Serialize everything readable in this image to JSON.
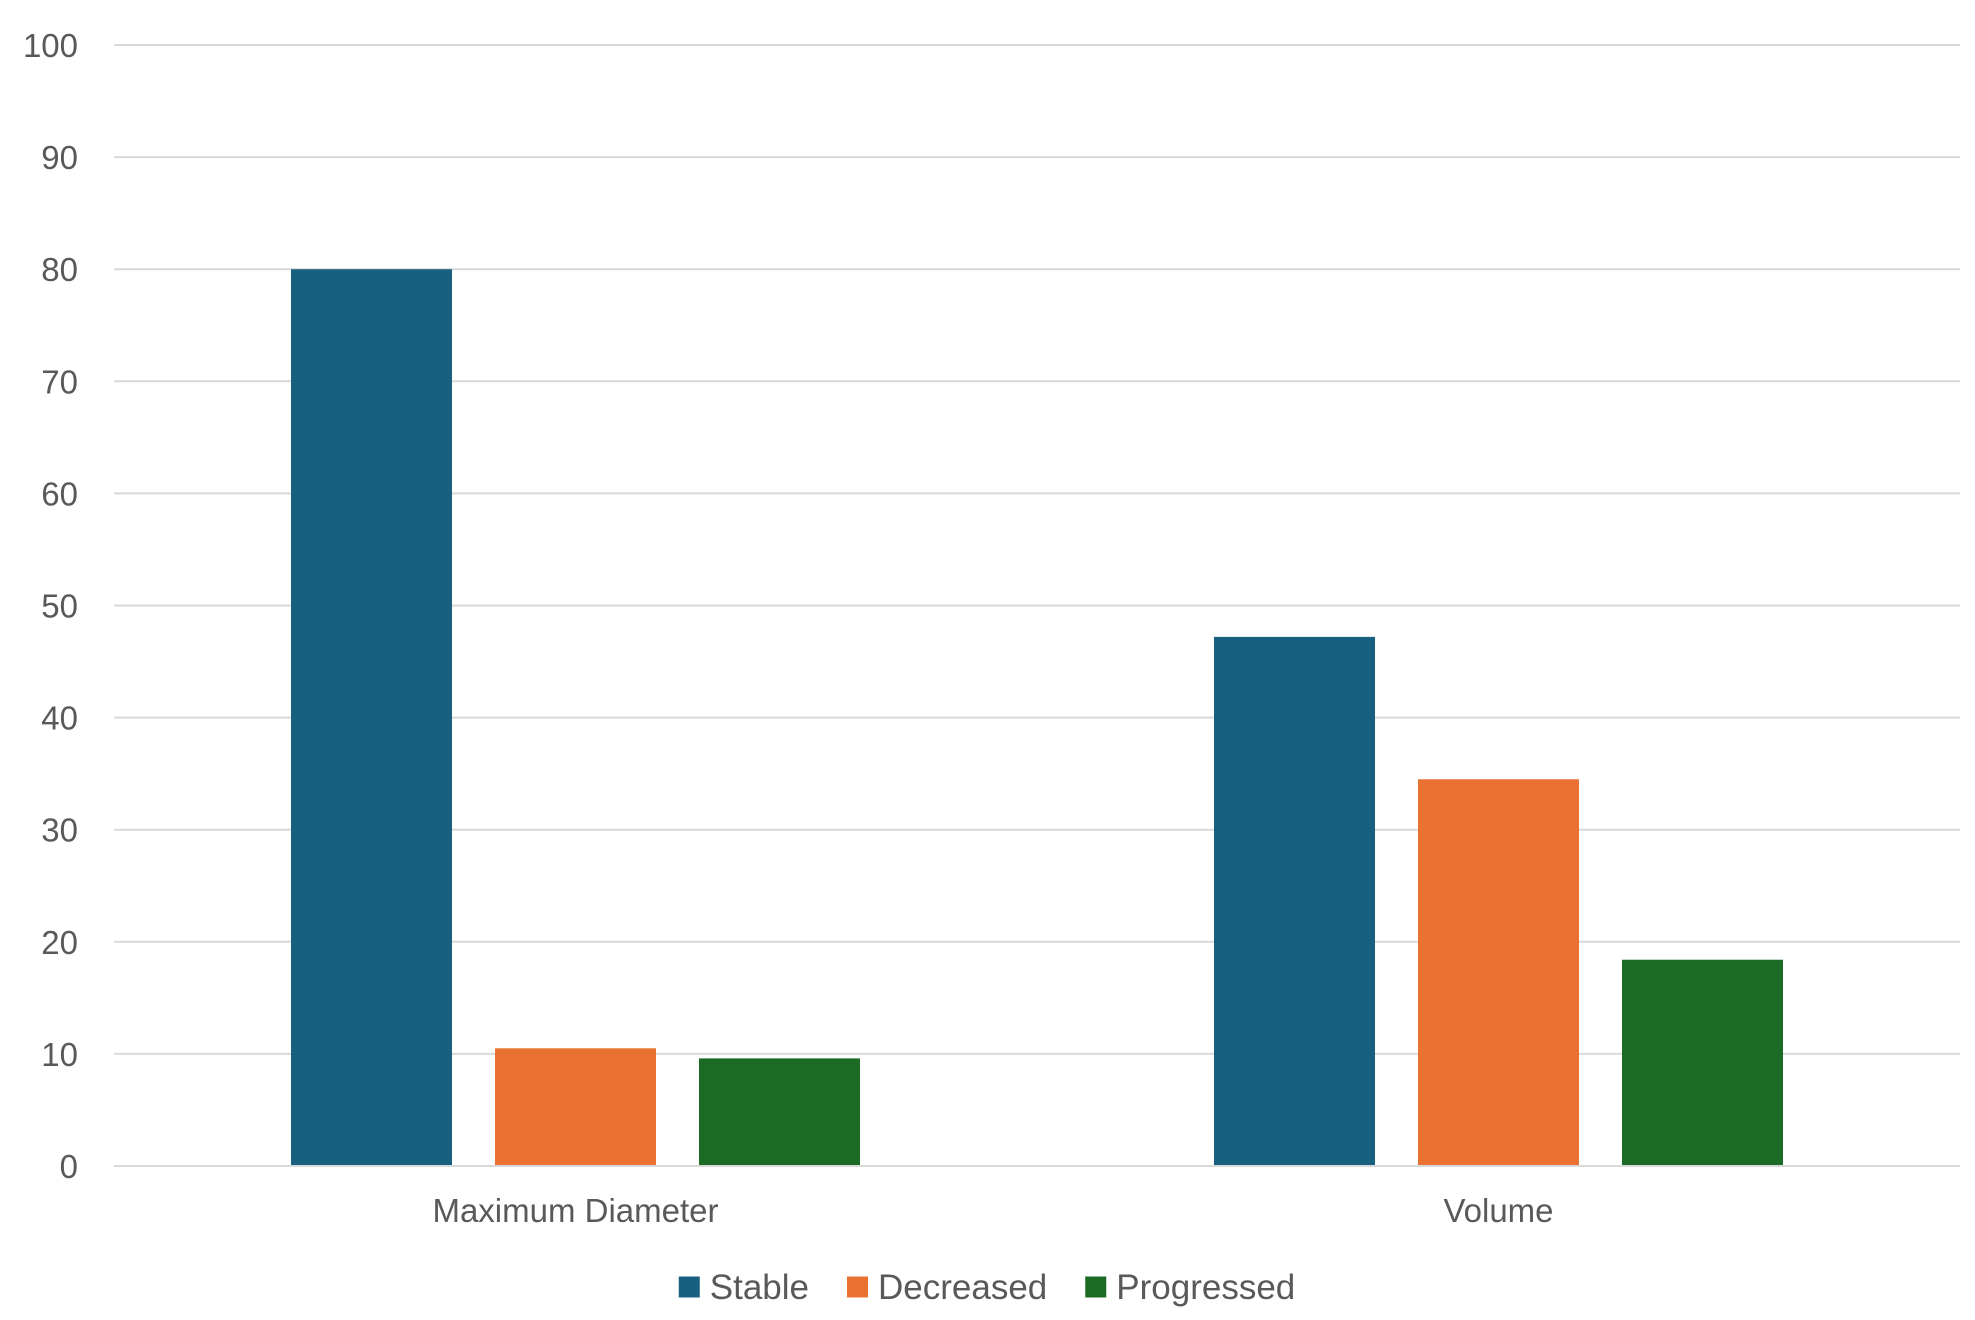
{
  "chart_data": {
    "type": "bar",
    "title": "",
    "xlabel": "",
    "ylabel": "",
    "categories": [
      "Maximum Diameter",
      "Volume"
    ],
    "series": [
      {
        "name": "Stable",
        "color": "#17607f",
        "values": [
          80,
          47.2
        ]
      },
      {
        "name": "Decreased",
        "color": "#e97132",
        "values": [
          10.5,
          34.5
        ]
      },
      {
        "name": "Progressed",
        "color": "#1b6b24",
        "values": [
          9.6,
          18.4
        ]
      }
    ],
    "ylim": [
      0,
      100
    ],
    "yticks": [
      "0",
      "10",
      "20",
      "30",
      "40",
      "50",
      "60",
      "70",
      "80",
      "90",
      "100"
    ],
    "grid": true,
    "legend_position": "bottom"
  }
}
